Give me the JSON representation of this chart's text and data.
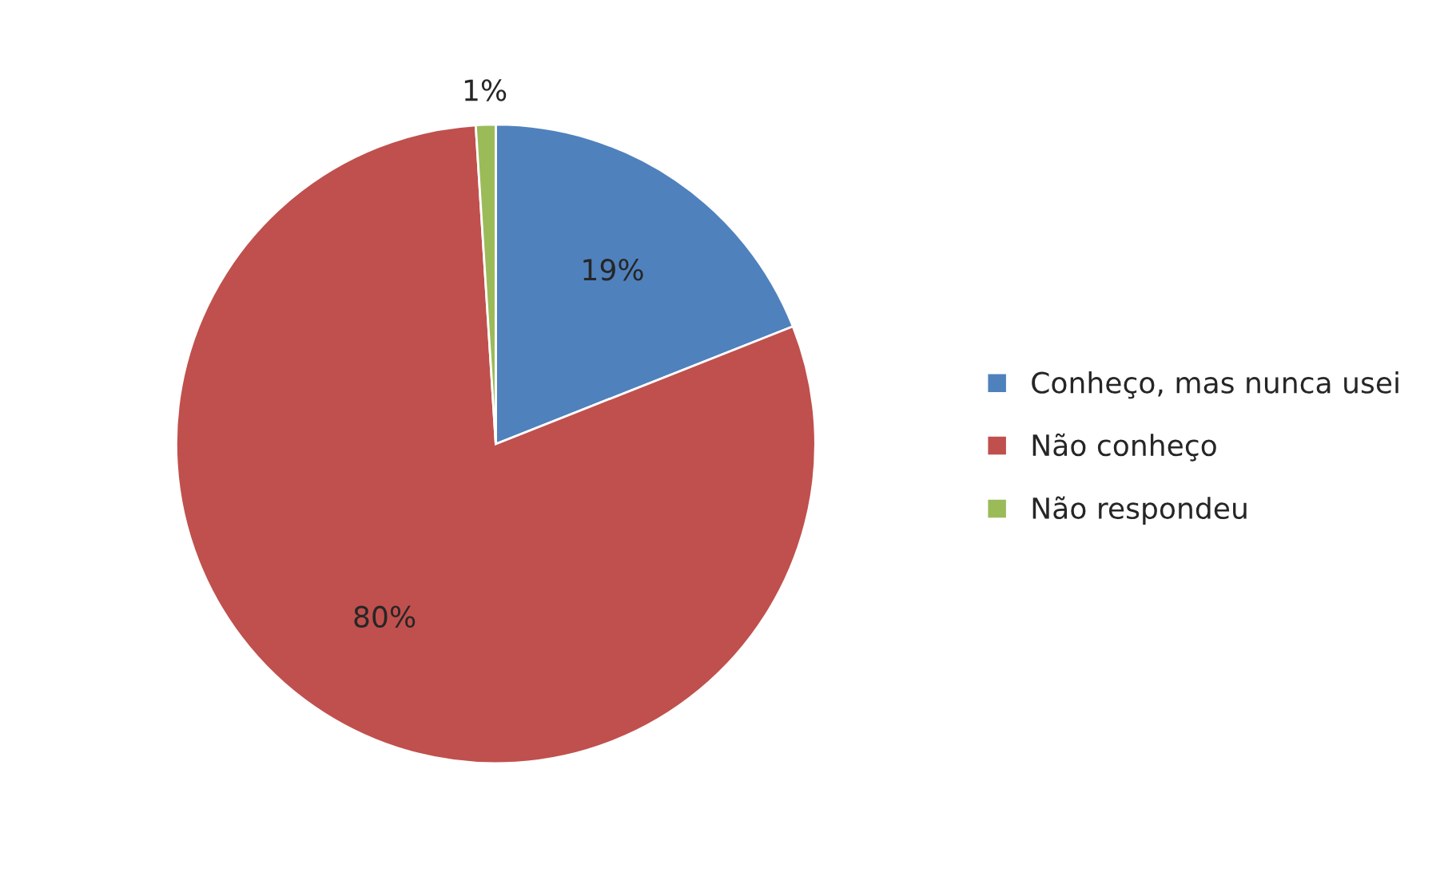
{
  "chart_data": {
    "type": "pie",
    "categories": [
      "Conheço, mas nunca usei",
      "Não conheço",
      "Não respondeu"
    ],
    "values": [
      19,
      80,
      1
    ],
    "colors": [
      "#4f81bd",
      "#c0504d",
      "#9bbb59"
    ],
    "value_labels": [
      "19%",
      "80%",
      "1%"
    ],
    "legend": "right"
  }
}
